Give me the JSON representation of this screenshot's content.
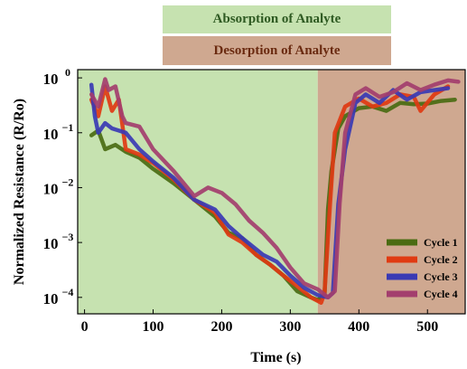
{
  "bands": {
    "absorption_label": "Absorption of Analyte",
    "desorption_label": "Desorption of Analyte",
    "absorption_color": "#c6e2b0",
    "desorption_color": "#cfa890"
  },
  "chart_data": {
    "type": "line",
    "xlabel": "Time (s)",
    "ylabel": "Normalized Resistance (R/Ro)",
    "xlim": [
      -10,
      555
    ],
    "ylim_log10": [
      -4.3,
      0.15
    ],
    "y_scale": "log",
    "x_ticks": [
      0,
      100,
      200,
      300,
      400,
      500
    ],
    "y_ticks_exponent": [
      0,
      -1,
      -2,
      -3,
      -4
    ],
    "y_tick_base": "10",
    "grid": false,
    "legend_position": "bottom-right",
    "regions": [
      {
        "name": "absorption",
        "x": [
          -10,
          340
        ],
        "color": "#c6e2b0"
      },
      {
        "name": "desorption",
        "x": [
          340,
          555
        ],
        "color": "#cfa890"
      }
    ],
    "series": [
      {
        "name": "Cycle 1",
        "color": "#4a6b12",
        "points": [
          [
            10,
            0.09
          ],
          [
            20,
            0.11
          ],
          [
            30,
            0.05
          ],
          [
            45,
            0.06
          ],
          [
            60,
            0.045
          ],
          [
            80,
            0.035
          ],
          [
            100,
            0.022
          ],
          [
            130,
            0.012
          ],
          [
            160,
            0.006
          ],
          [
            190,
            0.003
          ],
          [
            210,
            0.0015
          ],
          [
            230,
            0.0012
          ],
          [
            250,
            0.0006
          ],
          [
            270,
            0.0004
          ],
          [
            290,
            0.00025
          ],
          [
            310,
            0.00013
          ],
          [
            330,
            0.0001
          ],
          [
            340,
            9e-05
          ],
          [
            350,
            0.00011
          ],
          [
            355,
            0.004
          ],
          [
            360,
            0.02
          ],
          [
            370,
            0.12
          ],
          [
            380,
            0.2
          ],
          [
            400,
            0.28
          ],
          [
            420,
            0.3
          ],
          [
            440,
            0.25
          ],
          [
            460,
            0.35
          ],
          [
            480,
            0.33
          ],
          [
            500,
            0.34
          ],
          [
            520,
            0.38
          ],
          [
            540,
            0.4
          ]
        ]
      },
      {
        "name": "Cycle 2",
        "color": "#e03a12",
        "points": [
          [
            10,
            0.4
          ],
          [
            20,
            0.2
          ],
          [
            30,
            0.7
          ],
          [
            40,
            0.25
          ],
          [
            50,
            0.4
          ],
          [
            60,
            0.05
          ],
          [
            80,
            0.04
          ],
          [
            100,
            0.028
          ],
          [
            130,
            0.014
          ],
          [
            160,
            0.006
          ],
          [
            190,
            0.0035
          ],
          [
            210,
            0.0014
          ],
          [
            230,
            0.001
          ],
          [
            250,
            0.0006
          ],
          [
            270,
            0.0004
          ],
          [
            290,
            0.00025
          ],
          [
            310,
            0.00016
          ],
          [
            330,
            0.0001
          ],
          [
            345,
            8e-05
          ],
          [
            350,
            0.00012
          ],
          [
            358,
            0.005
          ],
          [
            365,
            0.1
          ],
          [
            380,
            0.3
          ],
          [
            400,
            0.42
          ],
          [
            420,
            0.3
          ],
          [
            440,
            0.35
          ],
          [
            460,
            0.5
          ],
          [
            480,
            0.45
          ],
          [
            490,
            0.25
          ],
          [
            510,
            0.5
          ],
          [
            530,
            0.7
          ]
        ]
      },
      {
        "name": "Cycle 3",
        "color": "#3a3ab4",
        "points": [
          [
            10,
            0.75
          ],
          [
            15,
            0.2
          ],
          [
            20,
            0.1
          ],
          [
            30,
            0.15
          ],
          [
            40,
            0.12
          ],
          [
            60,
            0.1
          ],
          [
            80,
            0.05
          ],
          [
            100,
            0.03
          ],
          [
            130,
            0.015
          ],
          [
            160,
            0.006
          ],
          [
            190,
            0.004
          ],
          [
            210,
            0.002
          ],
          [
            230,
            0.0012
          ],
          [
            260,
            0.0006
          ],
          [
            280,
            0.00045
          ],
          [
            300,
            0.00025
          ],
          [
            320,
            0.00015
          ],
          [
            340,
            0.00011
          ],
          [
            355,
            0.0001
          ],
          [
            362,
            0.00012
          ],
          [
            370,
            0.005
          ],
          [
            380,
            0.05
          ],
          [
            395,
            0.35
          ],
          [
            410,
            0.5
          ],
          [
            430,
            0.35
          ],
          [
            450,
            0.6
          ],
          [
            470,
            0.4
          ],
          [
            490,
            0.55
          ],
          [
            510,
            0.6
          ],
          [
            530,
            0.65
          ]
        ]
      },
      {
        "name": "Cycle 4",
        "color": "#a33e6e",
        "points": [
          [
            10,
            0.5
          ],
          [
            20,
            0.3
          ],
          [
            30,
            0.95
          ],
          [
            35,
            0.6
          ],
          [
            45,
            0.7
          ],
          [
            55,
            0.2
          ],
          [
            60,
            0.15
          ],
          [
            80,
            0.13
          ],
          [
            100,
            0.05
          ],
          [
            130,
            0.02
          ],
          [
            160,
            0.007
          ],
          [
            180,
            0.01
          ],
          [
            200,
            0.008
          ],
          [
            220,
            0.005
          ],
          [
            240,
            0.0025
          ],
          [
            260,
            0.0015
          ],
          [
            280,
            0.0008
          ],
          [
            300,
            0.00035
          ],
          [
            320,
            0.00018
          ],
          [
            340,
            0.00014
          ],
          [
            355,
            0.0001
          ],
          [
            365,
            0.00013
          ],
          [
            372,
            0.005
          ],
          [
            380,
            0.1
          ],
          [
            395,
            0.5
          ],
          [
            410,
            0.65
          ],
          [
            430,
            0.45
          ],
          [
            450,
            0.55
          ],
          [
            470,
            0.8
          ],
          [
            490,
            0.6
          ],
          [
            510,
            0.75
          ],
          [
            530,
            0.9
          ],
          [
            545,
            0.85
          ]
        ]
      }
    ]
  }
}
